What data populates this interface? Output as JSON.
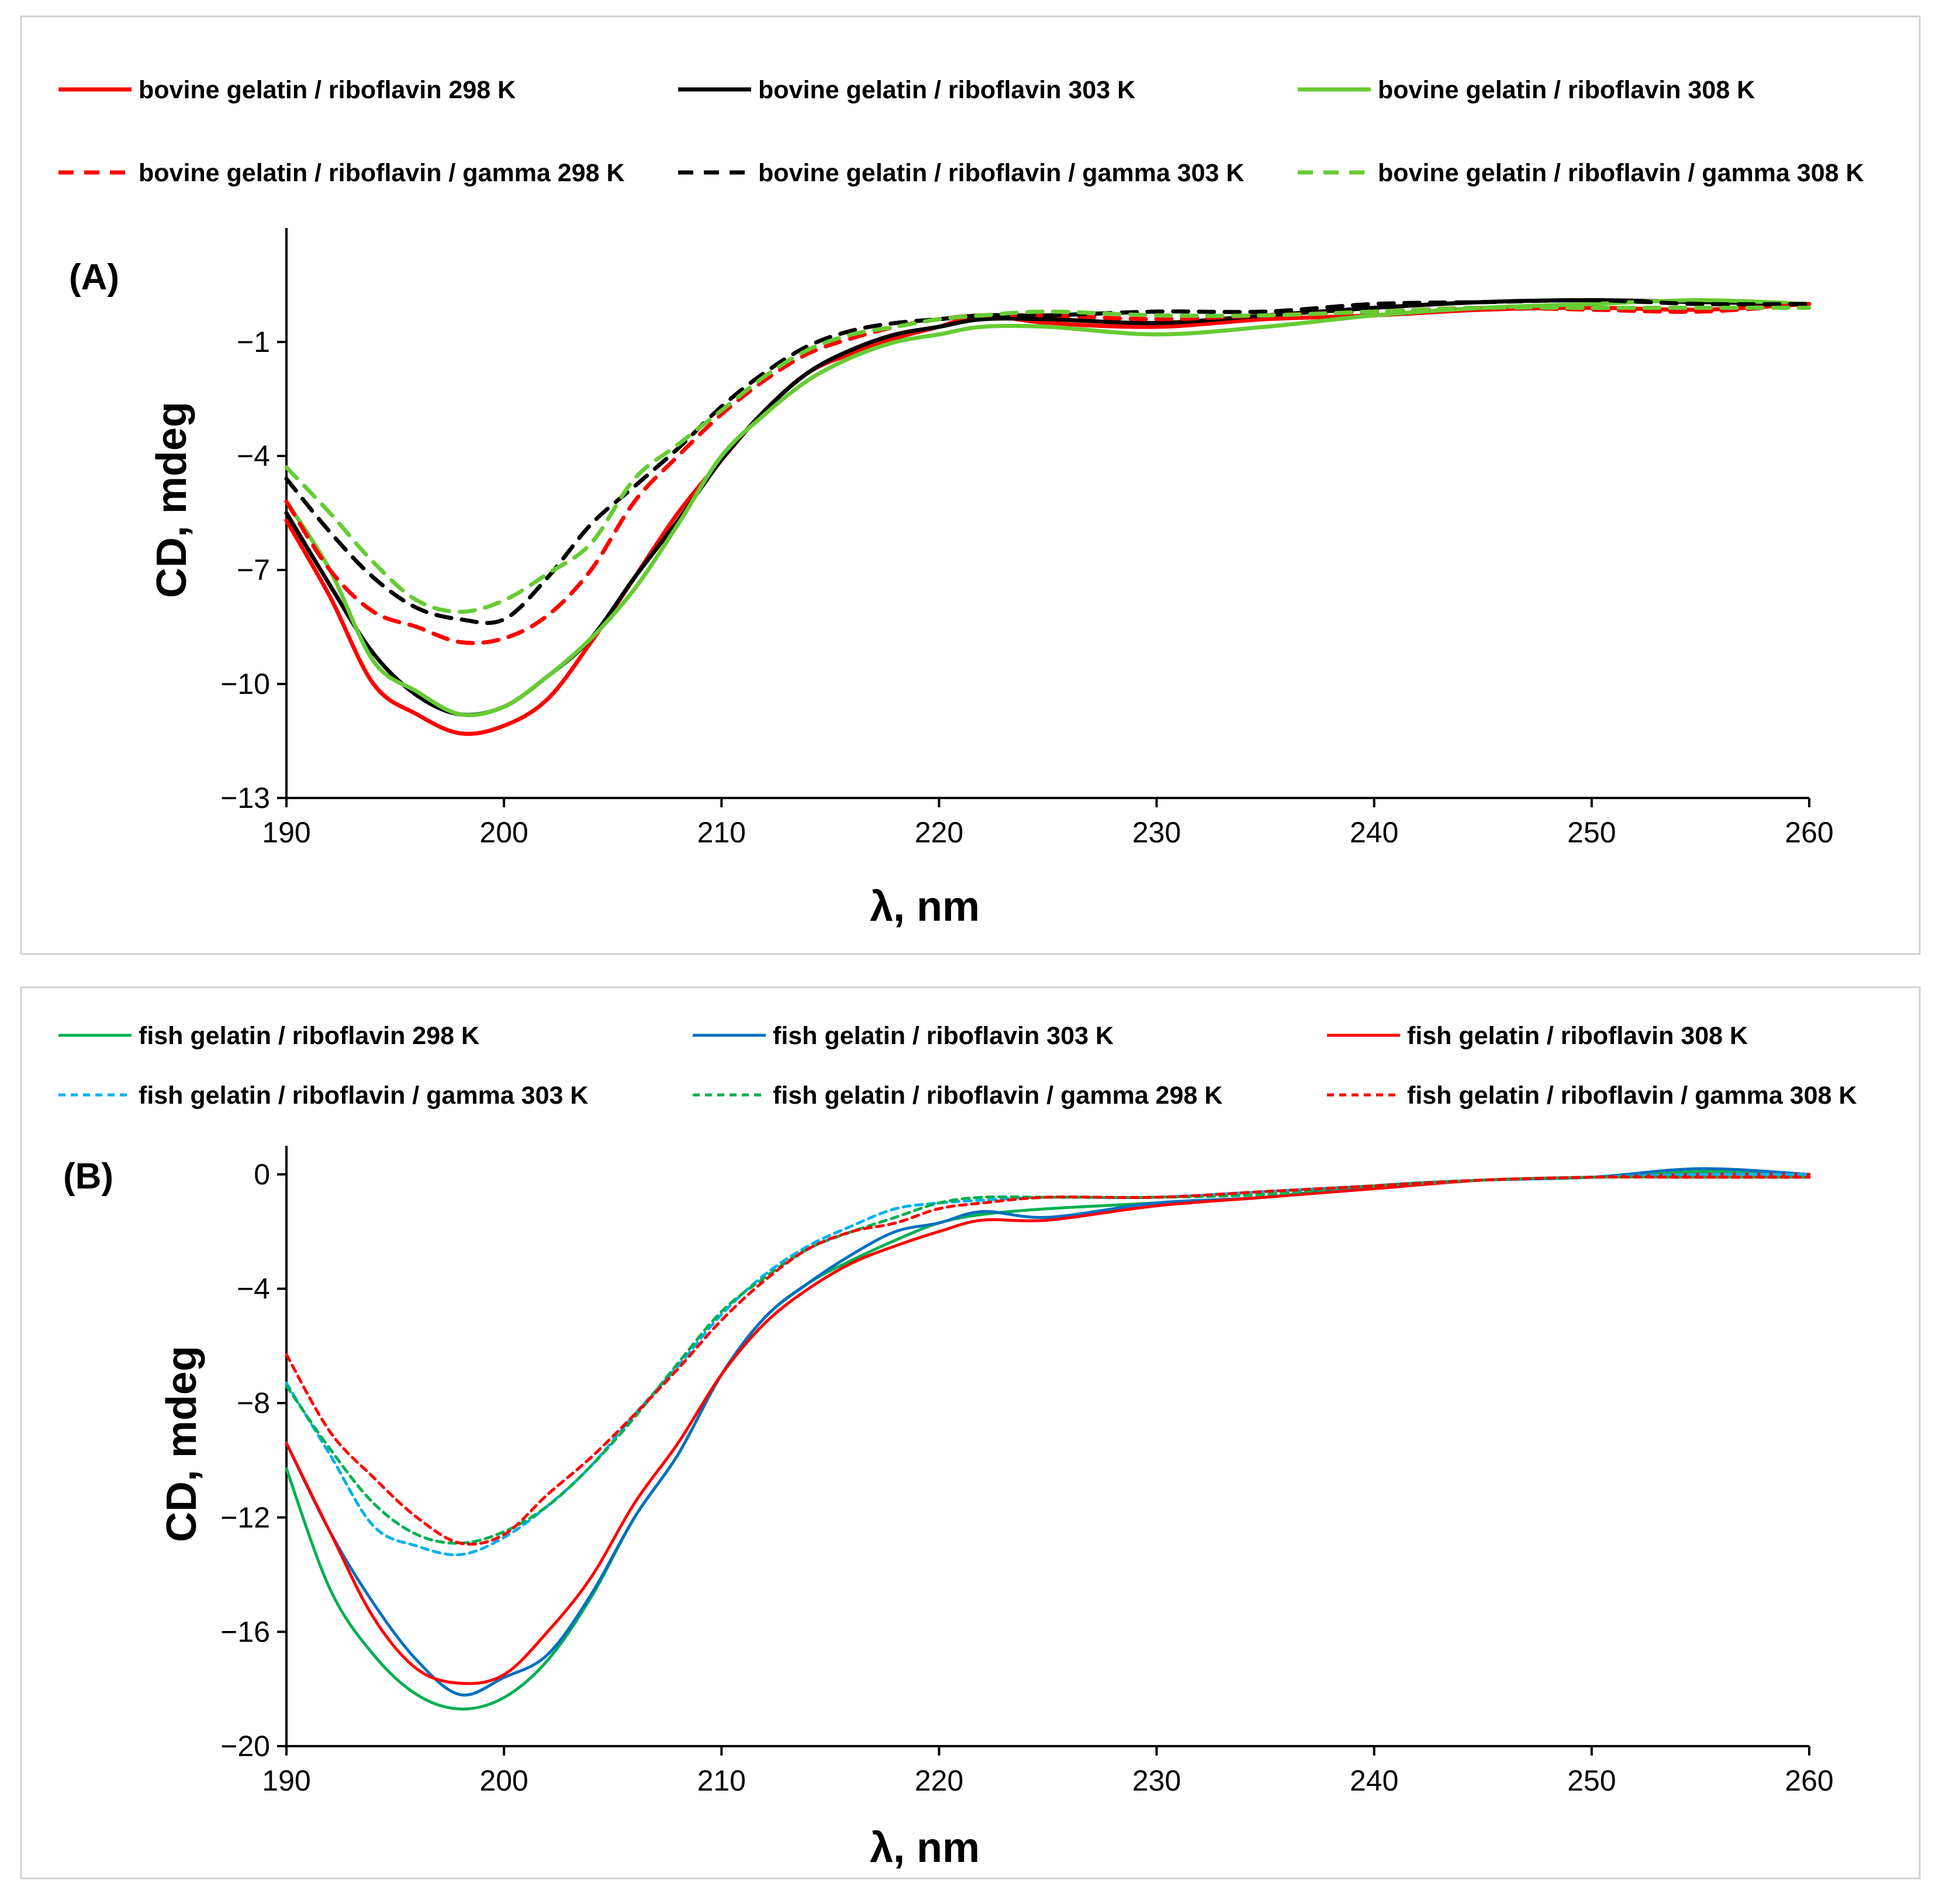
{
  "chart_data": [
    {
      "type": "line",
      "panel_label": "(A)",
      "xlabel": "λ, nm",
      "ylabel": "CD, mdeg",
      "xlim": [
        190,
        260
      ],
      "ylim": [
        -13,
        2
      ],
      "xticks": [
        190,
        200,
        210,
        220,
        230,
        240,
        250,
        260
      ],
      "yticks": [
        -1,
        -4,
        -7,
        -10,
        -13
      ],
      "x": [
        190,
        192,
        194,
        196,
        198,
        200,
        202,
        204,
        206,
        208,
        210,
        212,
        214,
        216,
        218,
        220,
        222,
        225,
        230,
        235,
        240,
        245,
        250,
        255,
        260
      ],
      "legend_position": "top",
      "series": [
        {
          "name": "bovine gelatin / riboflavin 298 K",
          "color": "#ff0000",
          "dash": "solid",
          "values": [
            -5.7,
            -7.7,
            -10.0,
            -10.8,
            -11.3,
            -11.1,
            -10.4,
            -8.9,
            -7.2,
            -5.5,
            -4.1,
            -2.8,
            -1.8,
            -1.3,
            -0.9,
            -0.6,
            -0.3,
            -0.5,
            -0.6,
            -0.4,
            -0.3,
            -0.15,
            -0.1,
            -0.15,
            0.0
          ]
        },
        {
          "name": "bovine gelatin / riboflavin 303 K",
          "color": "#000000",
          "dash": "solid",
          "values": [
            -5.5,
            -7.4,
            -9.2,
            -10.3,
            -10.8,
            -10.6,
            -9.8,
            -8.8,
            -7.2,
            -5.7,
            -4.1,
            -2.8,
            -1.8,
            -1.2,
            -0.8,
            -0.6,
            -0.4,
            -0.4,
            -0.5,
            -0.3,
            -0.1,
            0.05,
            0.1,
            0.05,
            0.0
          ]
        },
        {
          "name": "bovine gelatin / riboflavin 308 K",
          "color": "#66cc33",
          "dash": "solid",
          "values": [
            -5.2,
            -7.0,
            -9.4,
            -10.2,
            -10.8,
            -10.6,
            -9.8,
            -8.8,
            -7.5,
            -5.8,
            -4.0,
            -2.9,
            -2.0,
            -1.4,
            -1.0,
            -0.8,
            -0.6,
            -0.6,
            -0.8,
            -0.6,
            -0.3,
            -0.1,
            0.0,
            0.1,
            0.0
          ]
        },
        {
          "name": "bovine gelatin / riboflavin / gamma 298 K",
          "color": "#ff0000",
          "dash": "dashed",
          "values": [
            -5.2,
            -7.0,
            -8.1,
            -8.5,
            -8.9,
            -8.8,
            -8.2,
            -7.0,
            -5.2,
            -4.0,
            -2.9,
            -2.0,
            -1.3,
            -0.9,
            -0.6,
            -0.4,
            -0.3,
            -0.3,
            -0.4,
            -0.3,
            -0.2,
            -0.1,
            -0.15,
            -0.2,
            0.0
          ]
        },
        {
          "name": "bovine gelatin / riboflavin / gamma 303 K",
          "color": "#000000",
          "dash": "dashed",
          "values": [
            -4.6,
            -6.0,
            -7.2,
            -8.0,
            -8.3,
            -8.3,
            -7.2,
            -5.8,
            -4.8,
            -3.8,
            -2.7,
            -1.8,
            -1.1,
            -0.7,
            -0.5,
            -0.4,
            -0.3,
            -0.3,
            -0.2,
            -0.2,
            0.0,
            0.05,
            0.1,
            0.0,
            0.0
          ]
        },
        {
          "name": "bovine gelatin / riboflavin / gamma 308 K",
          "color": "#66cc33",
          "dash": "dashed",
          "values": [
            -4.3,
            -5.5,
            -6.8,
            -7.8,
            -8.1,
            -7.8,
            -7.1,
            -6.3,
            -4.6,
            -3.7,
            -2.8,
            -1.9,
            -1.2,
            -0.8,
            -0.6,
            -0.4,
            -0.3,
            -0.2,
            -0.3,
            -0.3,
            -0.2,
            -0.1,
            -0.1,
            -0.1,
            -0.1
          ]
        }
      ]
    },
    {
      "type": "line",
      "panel_label": "(B)",
      "xlabel": "λ, nm",
      "ylabel": "CD, mdeg",
      "xlim": [
        190,
        260
      ],
      "ylim": [
        -20,
        1
      ],
      "xticks": [
        190,
        200,
        210,
        220,
        230,
        240,
        250,
        260
      ],
      "yticks": [
        0,
        -4,
        -8,
        -12,
        -16,
        -20
      ],
      "x": [
        190,
        192,
        194,
        196,
        198,
        200,
        202,
        204,
        206,
        208,
        210,
        212,
        214,
        216,
        218,
        220,
        222,
        225,
        230,
        235,
        240,
        245,
        250,
        255,
        260
      ],
      "legend_position": "top",
      "series": [
        {
          "name": "fish gelatin / riboflavin 298 K",
          "color": "#00b050",
          "dash": "solid",
          "values": [
            -10.3,
            -14.5,
            -16.8,
            -18.2,
            -18.7,
            -18.3,
            -17.0,
            -14.8,
            -12.0,
            -9.8,
            -7.0,
            -5.0,
            -3.8,
            -3.0,
            -2.3,
            -1.7,
            -1.4,
            -1.2,
            -1.0,
            -0.8,
            -0.4,
            -0.2,
            -0.1,
            0.1,
            0.0
          ]
        },
        {
          "name": "fish gelatin / riboflavin 303 K",
          "color": "#0070c0",
          "dash": "solid",
          "values": [
            -9.4,
            -12.5,
            -15.0,
            -17.0,
            -18.2,
            -17.6,
            -16.8,
            -14.7,
            -12.0,
            -9.8,
            -7.0,
            -5.0,
            -3.8,
            -2.8,
            -2.0,
            -1.7,
            -1.3,
            -1.5,
            -1.0,
            -0.8,
            -0.4,
            -0.2,
            -0.1,
            0.2,
            0.0
          ]
        },
        {
          "name": "fish gelatin / riboflavin 308 K",
          "color": "#ff0000",
          "dash": "solid",
          "values": [
            -9.4,
            -12.5,
            -15.5,
            -17.3,
            -17.8,
            -17.5,
            -16.0,
            -14.1,
            -11.5,
            -9.4,
            -7.0,
            -5.2,
            -4.0,
            -3.1,
            -2.5,
            -2.0,
            -1.6,
            -1.6,
            -1.1,
            -0.8,
            -0.5,
            -0.2,
            -0.1,
            0.0,
            0.0
          ]
        },
        {
          "name": "fish gelatin / riboflavin / gamma 303 K",
          "color": "#00b0f0",
          "dash": "dotted",
          "values": [
            -7.3,
            -9.8,
            -12.3,
            -13.0,
            -13.3,
            -12.7,
            -11.6,
            -10.2,
            -8.4,
            -6.7,
            -4.9,
            -3.5,
            -2.5,
            -1.8,
            -1.2,
            -1.0,
            -0.9,
            -0.8,
            -0.8,
            -0.6,
            -0.4,
            -0.2,
            -0.1,
            0.0,
            0.0
          ]
        },
        {
          "name": "fish gelatin / riboflavin / gamma 298 K",
          "color": "#00b050",
          "dash": "dotted",
          "values": [
            -7.4,
            -9.6,
            -11.5,
            -12.6,
            -12.9,
            -12.5,
            -11.6,
            -10.2,
            -8.5,
            -6.6,
            -4.8,
            -3.6,
            -2.6,
            -2.0,
            -1.5,
            -1.0,
            -0.8,
            -0.8,
            -0.8,
            -0.7,
            -0.4,
            -0.2,
            -0.1,
            -0.1,
            -0.1
          ]
        },
        {
          "name": "fish gelatin / riboflavin / gamma 308 K",
          "color": "#ff0000",
          "dash": "dotted",
          "values": [
            -6.3,
            -9.0,
            -10.6,
            -12.0,
            -12.9,
            -12.6,
            -11.2,
            -9.9,
            -8.4,
            -6.8,
            -5.1,
            -3.7,
            -2.6,
            -2.0,
            -1.7,
            -1.2,
            -1.0,
            -0.8,
            -0.8,
            -0.6,
            -0.4,
            -0.2,
            -0.1,
            -0.1,
            -0.1
          ]
        }
      ]
    }
  ]
}
